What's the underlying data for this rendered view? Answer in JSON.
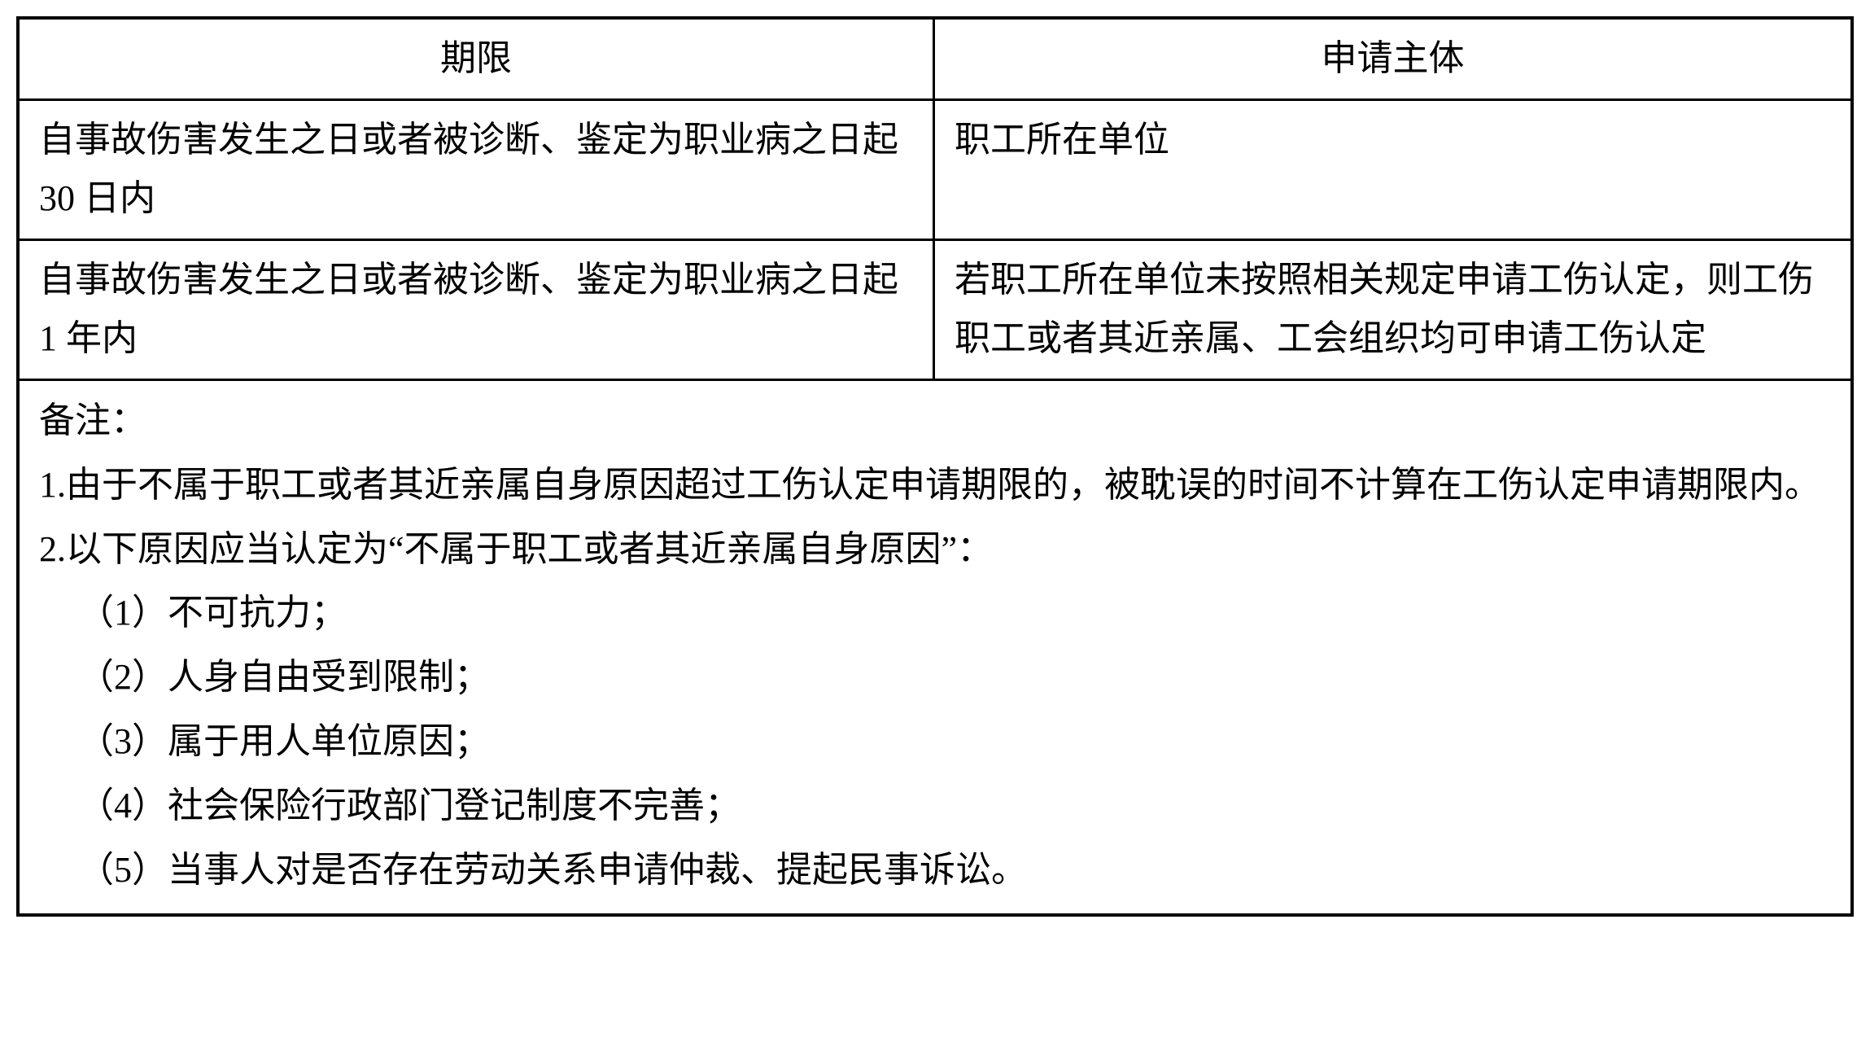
{
  "table": {
    "headers": {
      "col1": "期限",
      "col2": "申请主体"
    },
    "rows": [
      {
        "col1": "自事故伤害发生之日或者被诊断、鉴定为职业病之日起 30 日内",
        "col2": "职工所在单位"
      },
      {
        "col1": "自事故伤害发生之日或者被诊断、鉴定为职业病之日起 1 年内",
        "col2": "若职工所在单位未按照相关规定申请工伤认定，则工伤职工或者其近亲属、工会组织均可申请工伤认定"
      }
    ],
    "notes": {
      "label": "备注：",
      "items": [
        "1.由于不属于职工或者其近亲属自身原因超过工伤认定申请期限的，被耽误的时间不计算在工伤认定申请期限内。",
        "2.以下原因应当认定为“不属于职工或者其近亲属自身原因”："
      ],
      "subitems": [
        "（1）不可抗力；",
        "（2）人身自由受到限制；",
        "（3）属于用人单位原因；",
        "（4）社会保险行政部门登记制度不完善；",
        "（5）当事人对是否存在劳动关系申请仲裁、提起民事诉讼。"
      ]
    }
  },
  "style": {
    "border_color": "#000000",
    "background_color": "#ffffff",
    "text_color": "#000000",
    "font_size": 44,
    "border_width_outer": 4,
    "border_width_inner": 3
  }
}
